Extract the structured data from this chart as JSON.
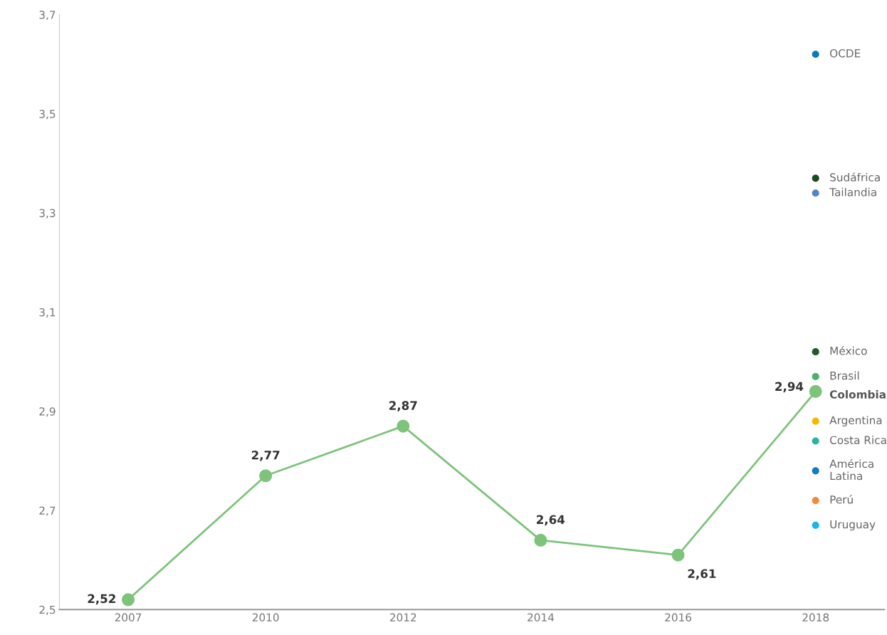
{
  "chart_data": {
    "type": "line",
    "categories": [
      "2007",
      "2010",
      "2012",
      "2014",
      "2016",
      "2018"
    ],
    "ylim": [
      2.5,
      3.7
    ],
    "yticks": [
      {
        "value": 2.5,
        "label": "2,5"
      },
      {
        "value": 2.7,
        "label": "2,7"
      },
      {
        "value": 2.9,
        "label": "2,9"
      },
      {
        "value": 3.1,
        "label": "3,1"
      },
      {
        "value": 3.3,
        "label": "3,3"
      },
      {
        "value": 3.5,
        "label": "3,5"
      },
      {
        "value": 3.7,
        "label": "3,7"
      }
    ],
    "grid": false,
    "legend": false,
    "marker": "circle",
    "line_style": "solid",
    "series": [
      {
        "name": "Colombia",
        "color": "#7dc47a",
        "values": [
          2.52,
          2.77,
          2.87,
          2.64,
          2.61,
          2.94
        ],
        "value_labels": [
          "2,52",
          "2,77",
          "2,87",
          "2,64",
          "2,61",
          "2,94"
        ]
      },
      {
        "name": "OCDE",
        "type": "scatter",
        "color": "#0a7ab8",
        "values": [
          null,
          null,
          null,
          null,
          null,
          3.62
        ]
      },
      {
        "name": "Sudáfrica",
        "type": "scatter",
        "color": "#1d4a25",
        "values": [
          null,
          null,
          null,
          null,
          null,
          3.37
        ]
      },
      {
        "name": "Tailandia",
        "type": "scatter",
        "color": "#4f86c6",
        "values": [
          null,
          null,
          null,
          null,
          null,
          3.34
        ]
      },
      {
        "name": "México",
        "type": "scatter",
        "color": "#1f5a2e",
        "values": [
          null,
          null,
          null,
          null,
          null,
          3.02
        ]
      },
      {
        "name": "Brasil",
        "type": "scatter",
        "color": "#4caf6a",
        "values": [
          null,
          null,
          null,
          null,
          null,
          2.97
        ]
      },
      {
        "name": "Argentina",
        "type": "scatter",
        "color": "#f5b800",
        "values": [
          null,
          null,
          null,
          null,
          null,
          2.88
        ]
      },
      {
        "name": "Costa Rica",
        "type": "scatter",
        "color": "#2ab3a6",
        "values": [
          null,
          null,
          null,
          null,
          null,
          2.84
        ]
      },
      {
        "name": "América\nLatina",
        "type": "scatter",
        "color": "#0b7fbf",
        "values": [
          null,
          null,
          null,
          null,
          null,
          2.78
        ]
      },
      {
        "name": "Perú",
        "type": "scatter",
        "color": "#f08a3c",
        "values": [
          null,
          null,
          null,
          null,
          null,
          2.72
        ]
      },
      {
        "name": "Uruguay",
        "type": "scatter",
        "color": "#1ab6e8",
        "values": [
          null,
          null,
          null,
          null,
          null,
          2.67
        ]
      }
    ]
  }
}
